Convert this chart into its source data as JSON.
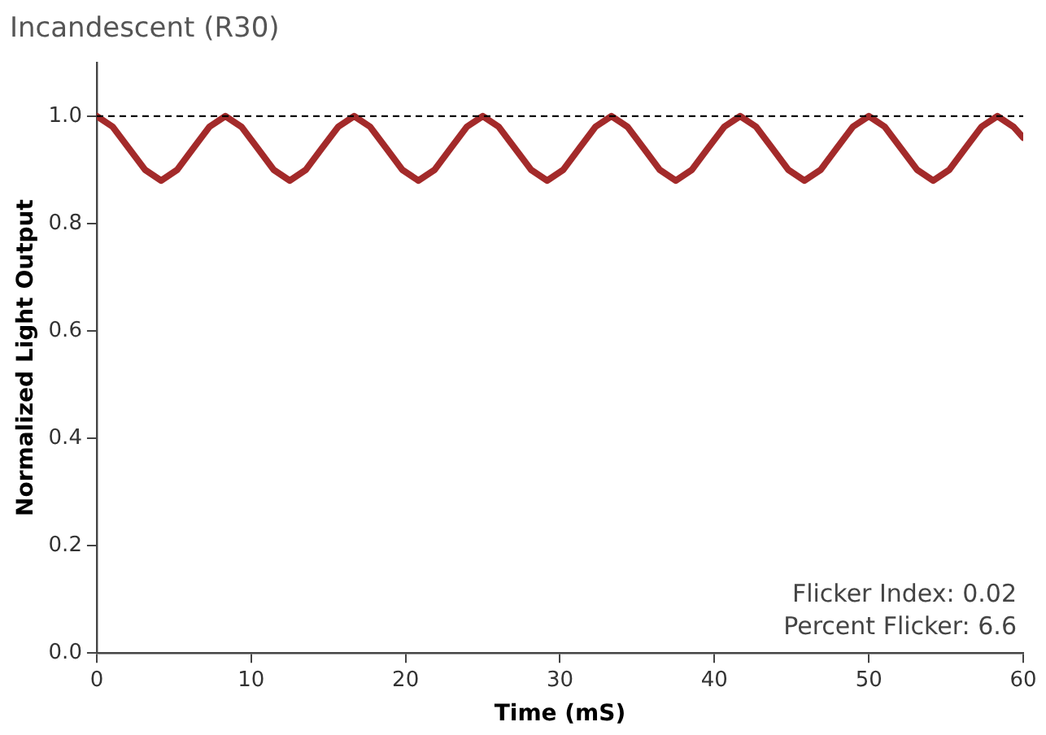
{
  "chart_data": {
    "type": "line",
    "title": "Incandescent (R30)",
    "xlabel": "Time (mS)",
    "ylabel": "Normalized Light Output",
    "x": [
      0,
      1.04,
      2.08,
      3.13,
      4.17,
      5.21,
      6.25,
      7.29,
      8.33,
      9.38,
      10.42,
      11.46,
      12.5,
      13.54,
      14.58,
      15.63,
      16.67,
      17.71,
      18.75,
      19.79,
      20.83,
      21.88,
      22.92,
      23.96,
      25,
      26.04,
      27.08,
      28.13,
      29.17,
      30.21,
      31.25,
      32.29,
      33.33,
      34.38,
      35.42,
      36.46,
      37.5,
      38.54,
      39.58,
      40.63,
      41.67,
      42.71,
      43.75,
      44.79,
      45.83,
      46.88,
      47.92,
      48.96,
      50,
      51.04,
      52.08,
      53.13,
      54.17,
      55.21,
      56.25,
      57.29,
      58.33,
      59.38,
      60
    ],
    "series": [
      {
        "color": "#a32a2a",
        "values": [
          1,
          0.98,
          0.94,
          0.9,
          0.88,
          0.9,
          0.94,
          0.98,
          1,
          0.98,
          0.94,
          0.9,
          0.88,
          0.9,
          0.94,
          0.98,
          1,
          0.98,
          0.94,
          0.9,
          0.88,
          0.9,
          0.94,
          0.98,
          1,
          0.98,
          0.94,
          0.9,
          0.88,
          0.9,
          0.94,
          0.98,
          1,
          0.98,
          0.94,
          0.9,
          0.88,
          0.9,
          0.94,
          0.98,
          1,
          0.98,
          0.94,
          0.9,
          0.88,
          0.9,
          0.94,
          0.98,
          1,
          0.98,
          0.94,
          0.9,
          0.88,
          0.9,
          0.94,
          0.98,
          1,
          0.98,
          0.96
        ]
      }
    ],
    "xlim": [
      0,
      60
    ],
    "xticks": [
      0,
      10,
      20,
      30,
      40,
      50,
      60
    ],
    "ylim": [
      0,
      1.1
    ],
    "yticks": [
      {
        "value": 0,
        "label": "0.0"
      },
      {
        "value": 0.2,
        "label": "0.2"
      },
      {
        "value": 0.4,
        "label": "0.4"
      },
      {
        "value": 0.6,
        "label": "0.6"
      },
      {
        "value": 0.8,
        "label": "0.8"
      },
      {
        "value": 1,
        "label": "1.0"
      }
    ],
    "ref_lines": [
      {
        "axis": "y",
        "value": 1,
        "color": "#000000",
        "line_style": "dashed"
      }
    ],
    "annotations": [
      "Flicker Index: 0.02",
      "Percent Flicker: 6.6"
    ],
    "grid": false,
    "legend": false,
    "marker": "none"
  }
}
